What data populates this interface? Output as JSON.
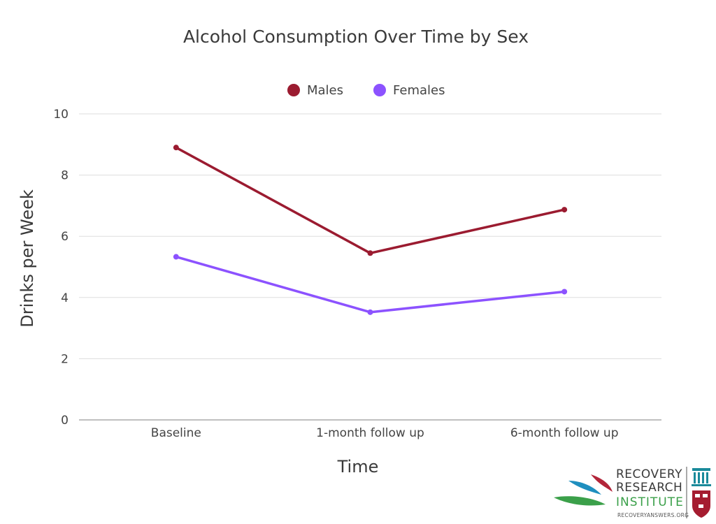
{
  "chart_data": {
    "type": "line",
    "title": "Alcohol Consumption Over Time by Sex",
    "xlabel": "Time",
    "ylabel": "Drinks per Week",
    "categories": [
      "Baseline",
      "1-month follow up",
      "6-month follow up"
    ],
    "ylim": [
      0,
      10
    ],
    "yticks": [
      0,
      2,
      4,
      6,
      8,
      10
    ],
    "grid": true,
    "legend_position": "top-center",
    "series": [
      {
        "name": "Males",
        "values": [
          8.9,
          5.45,
          6.87
        ],
        "color": "#9b1b30"
      },
      {
        "name": "Females",
        "values": [
          5.33,
          3.52,
          4.19
        ],
        "color": "#8c52ff"
      }
    ]
  },
  "logo": {
    "line1": "RECOVERY",
    "line2": "RESEARCH",
    "line3": "INSTITUTE",
    "url": "RECOVERYANSWERS.ORG",
    "colors": {
      "red": "#b3263a",
      "blue": "#1f8fbf",
      "green": "#3ba04a",
      "teal": "#1a8a9a"
    }
  }
}
